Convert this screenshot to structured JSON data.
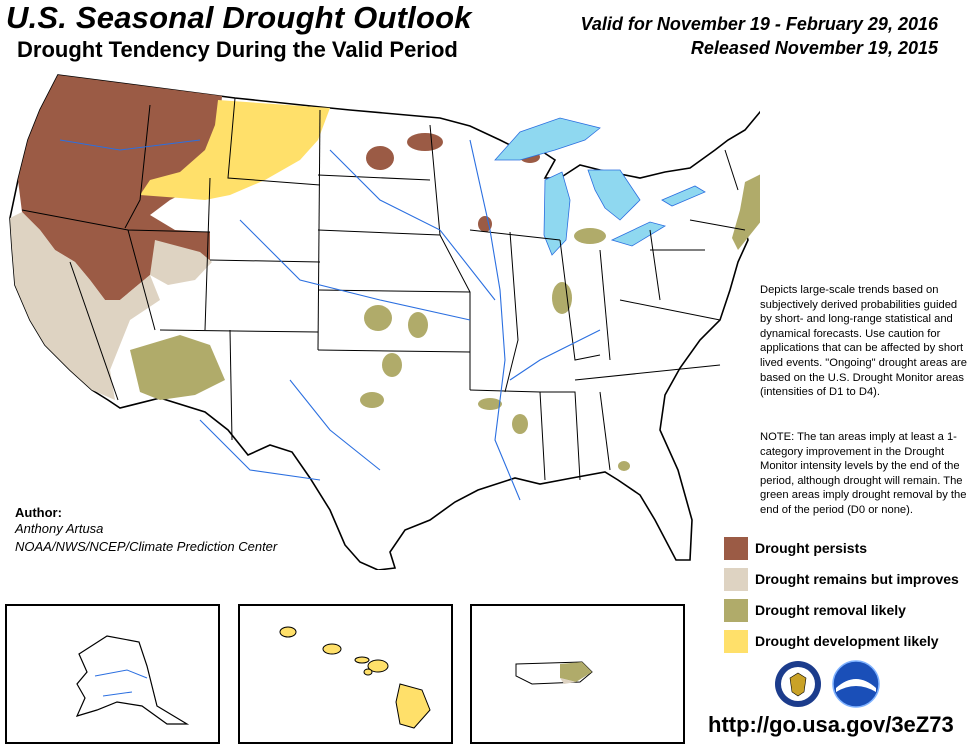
{
  "header": {
    "title": "U.S. Seasonal Drought Outlook",
    "subtitle": "Drought Tendency During the Valid Period",
    "valid": "Valid for November 19 - February 29, 2016",
    "released": "Released November 19, 2015"
  },
  "description": "Depicts large-scale trends based on subjectively derived probabilities guided by short- and long-range statistical and dynamical forecasts. Use caution for applications that can be affected by short lived events. \"Ongoing\" drought areas are based on the U.S. Drought Monitor areas (intensities of D1 to D4).",
  "note": "NOTE: The tan areas imply at least a 1-category improvement in the Drought Monitor intensity levels by the end of the period, although drought will remain. The green areas imply drought removal by the end of the period (D0 or none).",
  "author": {
    "heading": "Author:",
    "name": "Anthony Artusa",
    "org": "NOAA/NWS/NCEP/Climate Prediction Center"
  },
  "legend": [
    {
      "label": "Drought persists",
      "color": "#9b5b45"
    },
    {
      "label": "Drought remains but improves",
      "color": "#ded3c2"
    },
    {
      "label": "Drought removal likely",
      "color": "#b0ab6a"
    },
    {
      "label": "Drought development likely",
      "color": "#ffe06a"
    }
  ],
  "colors": {
    "water": "#8fd8f0",
    "rivers": "#2b6fe0",
    "boundary": "#000000"
  },
  "insets": [
    "Alaska",
    "Hawaii",
    "Puerto Rico"
  ],
  "logos": [
    "dept-of-commerce-seal",
    "noaa-logo"
  ],
  "url": "http://go.usa.gov/3eZ73"
}
